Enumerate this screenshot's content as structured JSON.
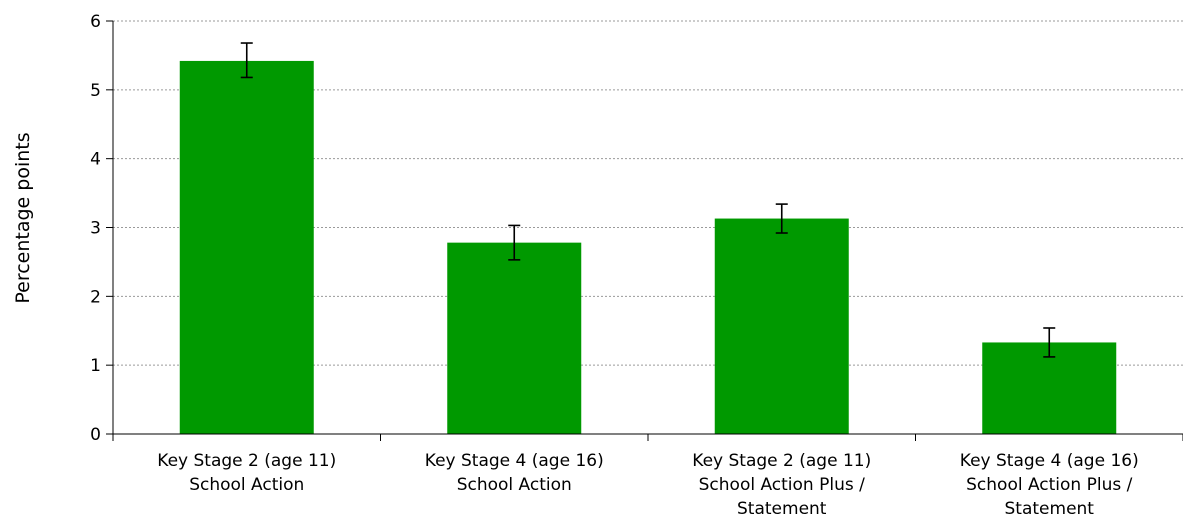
{
  "chart_data": {
    "type": "bar",
    "title": "",
    "xlabel": "",
    "ylabel": "Percentage points",
    "ylim": [
      0,
      6
    ],
    "yticks": [
      "0",
      "1",
      "2",
      "3",
      "4",
      "5",
      "6"
    ],
    "grid": true,
    "legend": "none",
    "bar_color": "#009900",
    "categories": [
      [
        "Key Stage 2 (age 11)",
        "School Action"
      ],
      [
        "Key Stage 4 (age 16)",
        "School Action"
      ],
      [
        "Key Stage 2 (age 11)",
        "School Action Plus /",
        "Statement"
      ],
      [
        "Key Stage 4 (age 16)",
        "School Action Plus /",
        "Statement"
      ]
    ],
    "values": [
      5.42,
      2.78,
      3.13,
      1.33
    ],
    "error_low": [
      5.18,
      2.53,
      2.92,
      1.12
    ],
    "error_high": [
      5.68,
      3.03,
      3.34,
      1.54
    ]
  }
}
